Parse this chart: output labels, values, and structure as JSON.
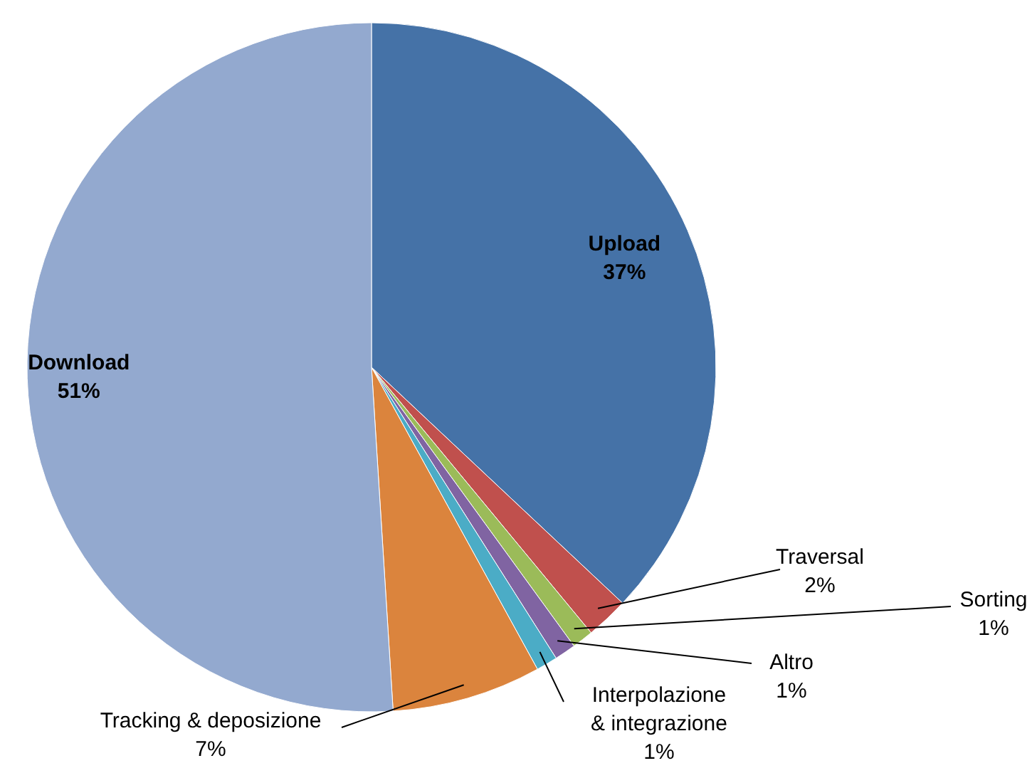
{
  "chart_data": {
    "type": "pie",
    "categories": [
      "Upload",
      "Traversal",
      "Sorting",
      "Altro",
      "Interpolazione & integrazione",
      "Tracking & deposizione",
      "Download"
    ],
    "values": [
      37,
      2,
      1,
      1,
      1,
      7,
      51
    ],
    "colors": [
      "#4572a7",
      "#c0504d",
      "#9bbb59",
      "#8064a2",
      "#4bacc6",
      "#db843d",
      "#93a9cf"
    ],
    "value_labels": [
      "37%",
      "2%",
      "1%",
      "1%",
      "1%",
      "7%",
      "51%"
    ]
  }
}
